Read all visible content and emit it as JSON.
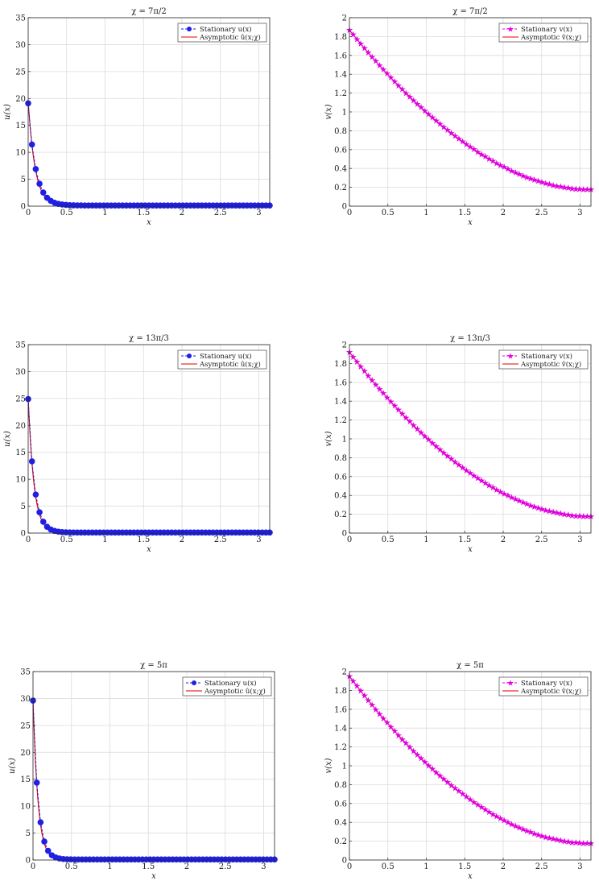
{
  "chart_data": [
    {
      "type": "line",
      "title": "χ = 7π/2",
      "xlabel": "x",
      "ylabel": "u(x)",
      "xlim": [
        0,
        3.1416
      ],
      "ylim": [
        0,
        35
      ],
      "xticks": [
        "0",
        "0.5",
        "1",
        "1.5",
        "2",
        "2.5",
        "3"
      ],
      "yticks": [
        "0",
        "5",
        "10",
        "15",
        "20",
        "25",
        "30",
        "35"
      ],
      "grid": true,
      "legend": "top-right",
      "series": [
        {
          "name": "Stationary u(x)",
          "style": "dashed-circle",
          "color": "#1f1fe6",
          "x0": 19.1,
          "decay": 10.5,
          "floor": 0.12
        },
        {
          "name": "Asymptotic û(x;χ)",
          "style": "solid",
          "color": "#e00000",
          "x0": 19.6,
          "decay": 11.2,
          "floor": 0.0
        }
      ]
    },
    {
      "type": "line",
      "title": "χ = 7π/2",
      "xlabel": "x",
      "ylabel": "v(x)",
      "xlim": [
        0,
        3.1416
      ],
      "ylim": [
        0,
        2
      ],
      "xticks": [
        "0",
        "0.5",
        "1",
        "1.5",
        "2",
        "2.5",
        "3"
      ],
      "yticks": [
        "0",
        "0.2",
        "0.4",
        "0.6",
        "0.8",
        "1",
        "1.2",
        "1.4",
        "1.6",
        "1.8",
        "2"
      ],
      "grid": true,
      "legend": "top-right",
      "series": [
        {
          "name": "Stationary v(x)",
          "style": "dashed-star",
          "color": "#e000e0",
          "y0": 1.87,
          "yend": 0.175,
          "curvature": 0.06
        },
        {
          "name": "Asymptotic ṽ(x;χ)",
          "style": "solid",
          "color": "#e00000",
          "y0": 1.87,
          "yend": 0.175,
          "curvature": 0.06
        }
      ]
    },
    {
      "type": "line",
      "title": "χ = 13π/3",
      "xlabel": "x",
      "ylabel": "u(x)",
      "xlim": [
        0,
        3.1416
      ],
      "ylim": [
        0,
        35
      ],
      "xticks": [
        "0",
        "0.5",
        "1",
        "1.5",
        "2",
        "2.5",
        "3"
      ],
      "yticks": [
        "0",
        "5",
        "10",
        "15",
        "20",
        "25",
        "30",
        "35"
      ],
      "grid": true,
      "legend": "top-right",
      "series": [
        {
          "name": "Stationary u(x)",
          "style": "dashed-circle",
          "color": "#1f1fe6",
          "x0": 24.9,
          "decay": 12.8,
          "floor": 0.1
        },
        {
          "name": "Asymptotic û(x;χ)",
          "style": "solid",
          "color": "#e00000",
          "x0": 25.3,
          "decay": 13.5,
          "floor": 0.0
        }
      ]
    },
    {
      "type": "line",
      "title": "χ = 13π/3",
      "xlabel": "x",
      "ylabel": "v(x)",
      "xlim": [
        0,
        3.1416
      ],
      "ylim": [
        0,
        2
      ],
      "xticks": [
        "0",
        "0.5",
        "1",
        "1.5",
        "2",
        "2.5",
        "3"
      ],
      "yticks": [
        "0",
        "0.2",
        "0.4",
        "0.6",
        "0.8",
        "1",
        "1.2",
        "1.4",
        "1.6",
        "1.8",
        "2"
      ],
      "grid": true,
      "legend": "top-right",
      "series": [
        {
          "name": "Stationary v(x)",
          "style": "dashed-star",
          "color": "#e000e0",
          "y0": 1.92,
          "yend": 0.175,
          "curvature": 0.05
        },
        {
          "name": "Asymptotic ṽ(x;χ)",
          "style": "solid",
          "color": "#e00000",
          "y0": 1.92,
          "yend": 0.175,
          "curvature": 0.05
        }
      ]
    },
    {
      "type": "line",
      "title": "χ = 5π",
      "xlabel": "x",
      "ylabel": "u(x)",
      "xlim": [
        0,
        3.1416
      ],
      "ylim": [
        0,
        35
      ],
      "xticks": [
        "0",
        "0.5",
        "1",
        "1.5",
        "2",
        "2.5",
        "3"
      ],
      "yticks": [
        "0",
        "5",
        "10",
        "15",
        "20",
        "25",
        "30",
        "35"
      ],
      "grid": true,
      "legend": "top-right",
      "series": [
        {
          "name": "Stationary u(x)",
          "style": "dashed-circle",
          "color": "#1f1fe6",
          "x0": 29.6,
          "decay": 14.8,
          "floor": 0.1
        },
        {
          "name": "Asymptotic û(x;χ)",
          "style": "solid",
          "color": "#e00000",
          "x0": 30.0,
          "decay": 15.5,
          "floor": 0.0
        }
      ]
    },
    {
      "type": "line",
      "title": "χ = 5π",
      "xlabel": "x",
      "ylabel": "v(x)",
      "xlim": [
        0,
        3.1416
      ],
      "ylim": [
        0,
        2
      ],
      "xticks": [
        "0",
        "0.5",
        "1",
        "1.5",
        "2",
        "2.5",
        "3"
      ],
      "yticks": [
        "0",
        "0.2",
        "0.4",
        "0.6",
        "0.8",
        "1",
        "1.2",
        "1.4",
        "1.6",
        "1.8",
        "2"
      ],
      "grid": true,
      "legend": "top-right",
      "series": [
        {
          "name": "Stationary v(x)",
          "style": "dashed-star",
          "color": "#e000e0",
          "y0": 1.95,
          "yend": 0.175,
          "curvature": 0.045
        },
        {
          "name": "Asymptotic ṽ(x;χ)",
          "style": "solid",
          "color": "#e00000",
          "y0": 1.95,
          "yend": 0.175,
          "curvature": 0.045
        }
      ]
    }
  ]
}
